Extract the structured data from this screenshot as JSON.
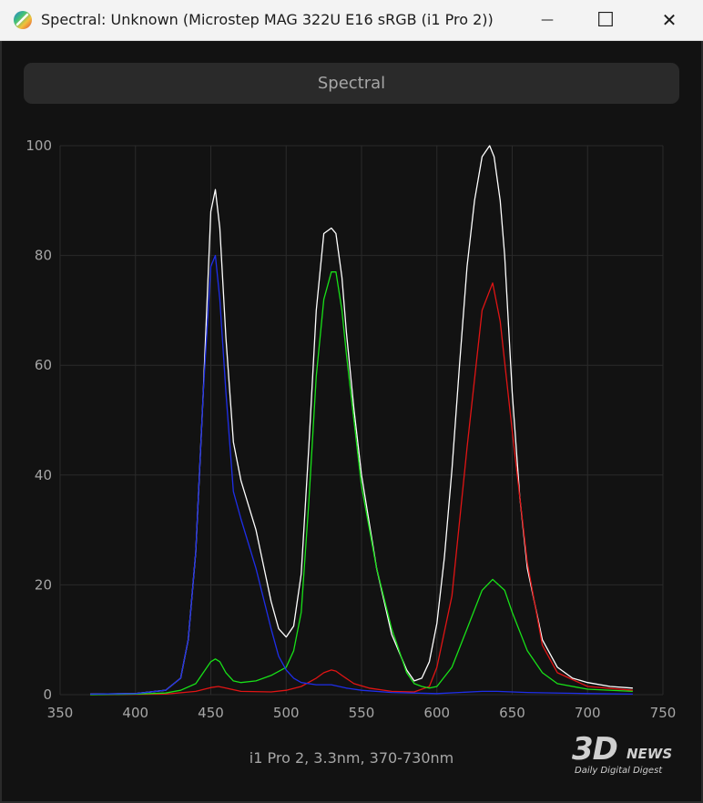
{
  "window": {
    "title": "Spectral: Unknown (Microstep MAG 322U E16 sRGB (i1 Pro 2))",
    "minimize_glyph": "—",
    "maximize_glyph": "☐",
    "close_glyph": "✕"
  },
  "toolbar": {
    "spectral_label": "Spectral"
  },
  "caption": "i1 Pro 2, 3.3nm, 370-730nm",
  "watermark": {
    "brand_3d": "3D",
    "brand_news": "NEWS",
    "tagline": "Daily Digital Digest"
  },
  "colors": {
    "bg": "#121212",
    "grid": "#2a2a2a",
    "axis_text": "#a6a6a6",
    "white": "#ffffff",
    "red": "#e01414",
    "green": "#18e018",
    "blue": "#1e2ee8"
  },
  "chart_data": {
    "type": "line",
    "xlim": [
      350,
      750
    ],
    "ylim": [
      0,
      100
    ],
    "xticks": [
      350,
      400,
      450,
      500,
      550,
      600,
      650,
      700,
      750
    ],
    "yticks": [
      0,
      20,
      40,
      60,
      80,
      100
    ],
    "grid": true,
    "series": [
      {
        "color": "#ffffff",
        "x": [
          370,
          400,
          420,
          430,
          435,
          440,
          445,
          450,
          453,
          456,
          460,
          465,
          470,
          480,
          490,
          495,
          500,
          505,
          510,
          515,
          520,
          525,
          530,
          533,
          537,
          540,
          545,
          550,
          560,
          570,
          580,
          585,
          590,
          595,
          600,
          605,
          610,
          615,
          620,
          625,
          630,
          635,
          638,
          642,
          645,
          650,
          655,
          660,
          670,
          680,
          690,
          700,
          715,
          730
        ],
        "y": [
          0.1,
          0.2,
          0.8,
          3,
          10,
          26,
          55,
          88,
          92,
          85,
          65,
          46,
          39,
          30,
          17,
          12,
          10.5,
          12.5,
          22,
          45,
          70,
          84,
          85,
          84,
          76,
          66,
          52,
          40,
          23,
          11,
          4.5,
          2.5,
          3,
          6,
          13,
          25,
          41,
          60,
          78,
          90,
          98,
          100,
          98,
          90,
          80,
          55,
          36,
          23,
          10,
          5,
          3,
          2.2,
          1.5,
          1.2
        ]
      },
      {
        "color": "#1e2ee8",
        "x": [
          370,
          400,
          420,
          430,
          435,
          440,
          445,
          450,
          453,
          456,
          460,
          465,
          470,
          480,
          490,
          495,
          500,
          505,
          510,
          520,
          530,
          540,
          550,
          570,
          600,
          630,
          640,
          660,
          700,
          730
        ],
        "y": [
          0.1,
          0.2,
          0.8,
          3,
          10,
          26,
          55,
          78,
          80,
          72,
          55,
          37,
          32,
          23,
          12,
          7,
          4.5,
          3,
          2.2,
          1.8,
          1.8,
          1.2,
          0.8,
          0.4,
          0.2,
          0.6,
          0.6,
          0.4,
          0.2,
          0.1
        ]
      },
      {
        "color": "#18e018",
        "x": [
          370,
          400,
          420,
          430,
          440,
          445,
          450,
          453,
          456,
          460,
          465,
          470,
          480,
          490,
          500,
          505,
          510,
          515,
          520,
          525,
          530,
          533,
          537,
          540,
          545,
          550,
          560,
          570,
          580,
          585,
          590,
          595,
          600,
          610,
          620,
          630,
          637,
          645,
          650,
          660,
          670,
          680,
          700,
          730
        ],
        "y": [
          0,
          0.1,
          0.3,
          0.8,
          2,
          4,
          6,
          6.5,
          6,
          4,
          2.5,
          2.2,
          2.5,
          3.5,
          5,
          8,
          15,
          35,
          58,
          72,
          77,
          77,
          70,
          62,
          50,
          38,
          23,
          12,
          4,
          2,
          1.5,
          1.2,
          1.5,
          5,
          12,
          19,
          21,
          19,
          15,
          8,
          4,
          2,
          1,
          0.6
        ]
      },
      {
        "color": "#e01414",
        "x": [
          370,
          420,
          440,
          450,
          455,
          460,
          470,
          490,
          500,
          510,
          520,
          525,
          530,
          533,
          537,
          545,
          555,
          570,
          585,
          595,
          600,
          610,
          620,
          630,
          637,
          642,
          650,
          660,
          670,
          680,
          700,
          730
        ],
        "y": [
          0,
          0.1,
          0.6,
          1.3,
          1.5,
          1.2,
          0.6,
          0.5,
          0.8,
          1.5,
          3,
          4,
          4.5,
          4.3,
          3.5,
          2,
          1.2,
          0.6,
          0.5,
          1.5,
          5,
          18,
          45,
          70,
          75,
          68,
          48,
          24,
          9,
          4,
          1.5,
          0.8
        ]
      }
    ]
  }
}
